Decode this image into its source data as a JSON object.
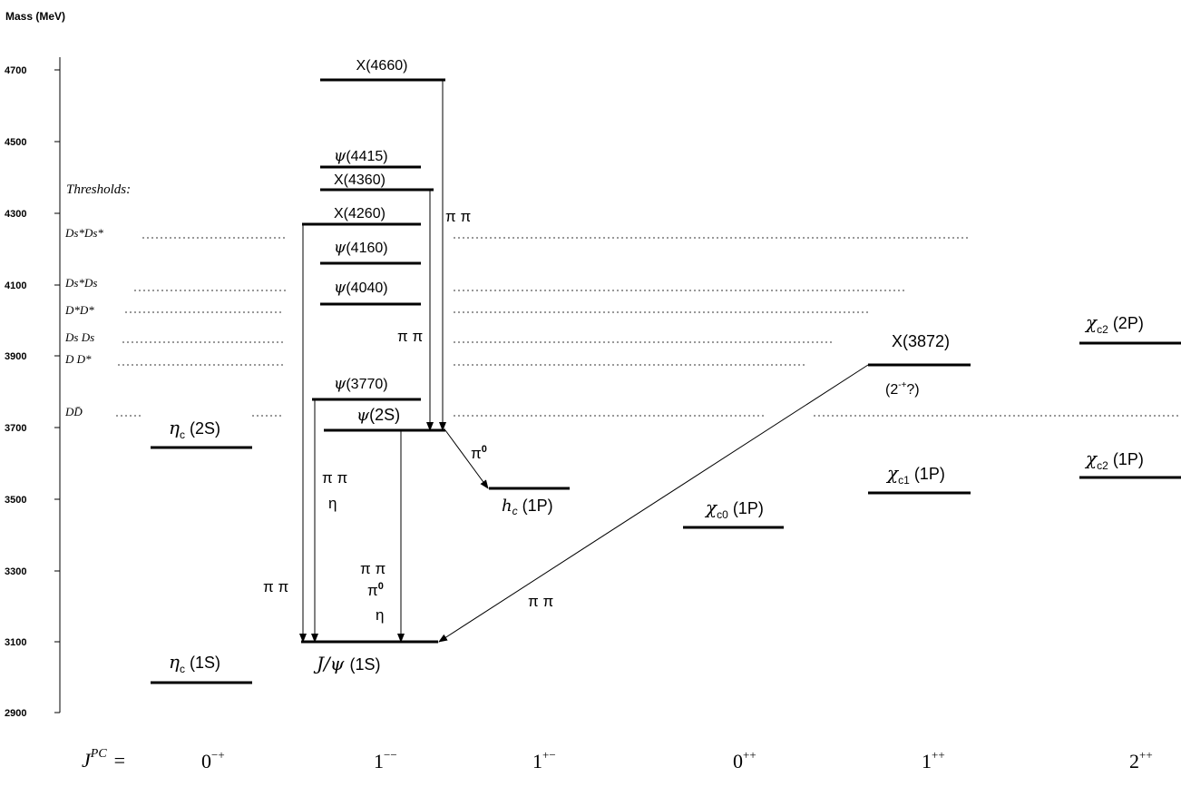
{
  "axis": {
    "title": "Mass (MeV)",
    "ticks": [
      "4700",
      "4500",
      "4300",
      "4100",
      "3900",
      "3700",
      "3500",
      "3300",
      "3100",
      "2900"
    ]
  },
  "thresholds": {
    "title": "Thresholds:",
    "items": [
      {
        "label": "Ds*Ds*"
      },
      {
        "label": "Ds*Ds"
      },
      {
        "label": "D*D*"
      },
      {
        "label": "Ds Ds"
      },
      {
        "label": "D D*"
      },
      {
        "label": "DD̄"
      }
    ]
  },
  "states": {
    "x4660": "X(4660)",
    "psi4415_mass": "(4415)",
    "x4360": "X(4360)",
    "x4260": "X(4260)",
    "psi4160_mass": "(4160)",
    "psi4040_mass": "(4040)",
    "psi3770_mass": "(3770)",
    "psi2s_level": "(2S)",
    "eta_c_2s_level": "(2S)",
    "h_c_level": "(1P)",
    "chi_c0_level": "(1P)",
    "x3872": "X(3872)",
    "x3872_jpc": "(2",
    "x3872_jpc_sup": "-+",
    "x3872_jpc_end": "?)",
    "chi_c1_level": "(1P)",
    "chi_c2_2p_level": "(2P)",
    "chi_c2_1p_level": "(1P)",
    "eta_c_1s_level": "(1S)",
    "jpsi_level": "(1S)",
    "psi_symbol": "ψ",
    "eta_symbol": "η",
    "chi_symbol": "χ",
    "h_symbol": "h",
    "sub_c": "c",
    "sub_c0": "c0",
    "sub_c1": "c1",
    "sub_c2": "c2",
    "jpsi_symbol": "J/ψ"
  },
  "transitions": {
    "pipi_x4660": "π π",
    "pipi_mid": "π π",
    "pipi_x4260": "π π",
    "pipi_psi3770": "π π",
    "eta_psi3770": "η",
    "pipi_psi2s": "π π",
    "pi0_psi2s": "π",
    "pi0_sup": "0",
    "eta_psi2s": "η",
    "pi0_hc": "π",
    "pipi_x3872": "π π"
  },
  "jpc": {
    "prefix": "J",
    "prefix_sup": "PC",
    "equals": "=",
    "columns": [
      {
        "base": "0",
        "sup": "−+"
      },
      {
        "base": "1",
        "sup": "−−"
      },
      {
        "base": "1",
        "sup": "+−"
      },
      {
        "base": "0",
        "sup": "++"
      },
      {
        "base": "1",
        "sup": "++"
      },
      {
        "base": "2",
        "sup": "++"
      }
    ]
  }
}
